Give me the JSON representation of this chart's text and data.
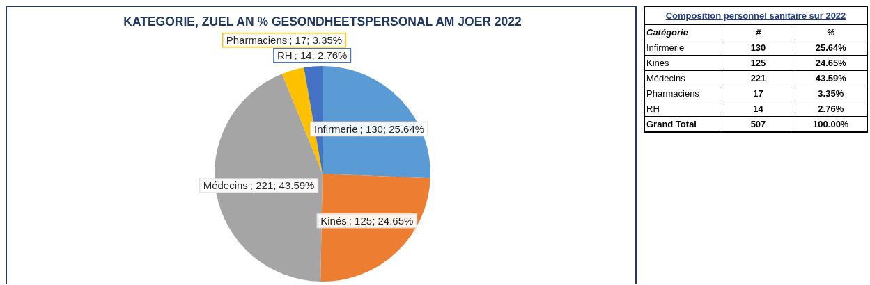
{
  "chart_data": [
    {
      "type": "pie",
      "title": "KATEGORIE, ZUEL AN % GESONDHEETSPERSONAL AM JOER 2022",
      "categories": [
        "Infirmerie",
        "Kinés",
        "Médecins",
        "Pharmaciens",
        "RH"
      ],
      "values": [
        130,
        125,
        221,
        17,
        14
      ],
      "colors": [
        "#5b9bd5",
        "#ed7d31",
        "#a5a5a5",
        "#ffc000",
        "#4472c4"
      ],
      "value_labels": [
        "; 130; 25.64%",
        "; 125; 24.65%",
        "; 221; 43.59%",
        "; 17; 3.35%",
        "; 14; 2.76%"
      ]
    },
    {
      "type": "other",
      "title": "Composition personnel sanitaire sur 2022",
      "ylabel": "Catégorie",
      "categories": [
        "Infirmerie",
        "Kinés",
        "Médecins",
        "Pharmaciens",
        "RH",
        "Grand Total"
      ],
      "data_labels": true,
      "series": [
        {
          "name": "#",
          "values": [
            130,
            125,
            221,
            17,
            14,
            507
          ]
        },
        {
          "name": "%",
          "values": [
            25.64,
            24.65,
            43.59,
            3.35,
            2.76,
            100.0
          ],
          "value_labels": [
            "25.64%",
            "24.65%",
            "43.59%",
            "3.35%",
            "2.76%",
            "100.00%"
          ]
        }
      ]
    }
  ]
}
